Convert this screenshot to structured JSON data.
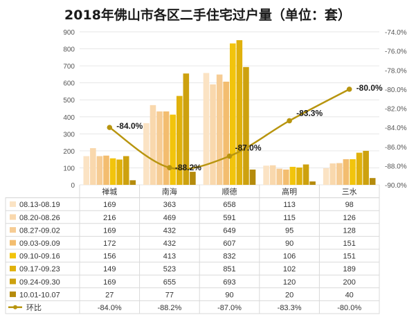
{
  "chart_data": {
    "type": "bar",
    "title": "2018年佛山市各区二手住宅过户量（单位：套）",
    "categories": [
      "禅城",
      "南海",
      "顺德",
      "高明",
      "三水"
    ],
    "ylim": [
      0,
      900
    ],
    "yticks": [
      0,
      100,
      200,
      300,
      400,
      500,
      600,
      700,
      800,
      900
    ],
    "y2lim": [
      -90,
      -74
    ],
    "y2ticks": [
      "-74.0%",
      "-76.0%",
      "-78.0%",
      "-80.0%",
      "-82.0%",
      "-84.0%",
      "-86.0%",
      "-88.0%",
      "-90.0%"
    ],
    "series": [
      {
        "name": "08.13-08.19",
        "color": "#fbe3c4",
        "values": [
          169,
          363,
          658,
          113,
          98
        ]
      },
      {
        "name": "08.20-08.26",
        "color": "#f9d8ad",
        "values": [
          216,
          469,
          591,
          115,
          126
        ]
      },
      {
        "name": "08.27-09.02",
        "color": "#f6cc94",
        "values": [
          169,
          432,
          649,
          95,
          128
        ]
      },
      {
        "name": "09.03-09.09",
        "color": "#f3bd6f",
        "values": [
          172,
          432,
          607,
          90,
          151
        ]
      },
      {
        "name": "09.10-09.16",
        "color": "#f2c40c",
        "values": [
          156,
          413,
          832,
          106,
          151
        ]
      },
      {
        "name": "09.17-09.23",
        "color": "#e0b10c",
        "values": [
          149,
          523,
          851,
          102,
          189
        ]
      },
      {
        "name": "09.24-09.30",
        "color": "#cda10e",
        "values": [
          169,
          655,
          693,
          120,
          200
        ]
      },
      {
        "name": "10.01-10.07",
        "color": "#b58b0c",
        "values": [
          27,
          77,
          90,
          20,
          40
        ]
      }
    ],
    "line": {
      "name": "环比",
      "color": "#b8950f",
      "values": [
        -84.0,
        -88.2,
        -87.0,
        -83.3,
        -80.0
      ],
      "labels": [
        "-84.0%",
        "-88.2%",
        "-87.0%",
        "-83.3%",
        "-80.0%"
      ]
    },
    "grid": true,
    "legend": "table-below"
  }
}
